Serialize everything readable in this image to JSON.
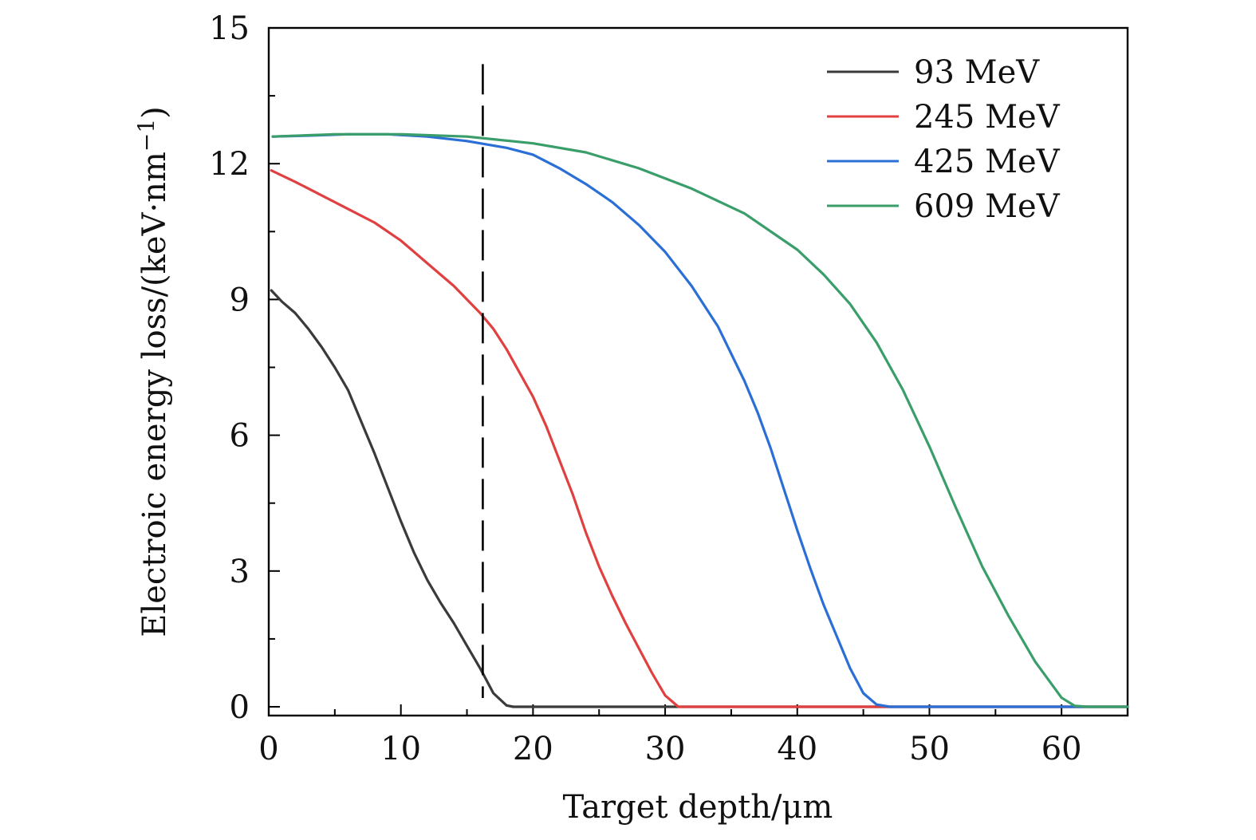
{
  "chart_data": {
    "type": "line",
    "title": "",
    "xlabel": "Target depth/μm",
    "ylabel_main": "Electroic energy loss/(keV·nm",
    "ylabel_exp": "−1",
    "ylabel_close": ")",
    "xlim": [
      0,
      65
    ],
    "ylim": [
      0,
      15
    ],
    "xticks": [
      0,
      10,
      20,
      30,
      40,
      50,
      60
    ],
    "xtick_labels": [
      "0",
      "10",
      "20",
      "30",
      "40",
      "50",
      "60"
    ],
    "yticks": [
      0,
      3,
      6,
      9,
      12,
      15
    ],
    "ytick_labels": [
      "0",
      "3",
      "6",
      "9",
      "12",
      "15"
    ],
    "grid": false,
    "legend_position": "top-right",
    "reference_line": {
      "x": 16.2,
      "y_range": [
        0,
        14.2
      ],
      "style": "dashed",
      "color": "#000000"
    },
    "series": [
      {
        "name": "93 MeV",
        "color": "#3a3a3a",
        "x": [
          0.2,
          1,
          2,
          3,
          4,
          5,
          6,
          7,
          8,
          9,
          10,
          11,
          12,
          13,
          14,
          15,
          16,
          17,
          18,
          18.5,
          20,
          30,
          40,
          50,
          60,
          65
        ],
        "y": [
          9.2,
          8.95,
          8.7,
          8.35,
          7.95,
          7.5,
          7.0,
          6.3,
          5.6,
          4.85,
          4.1,
          3.4,
          2.8,
          2.3,
          1.85,
          1.35,
          0.85,
          0.3,
          0.03,
          0.0,
          0.0,
          0.0,
          0.0,
          0.0,
          0.0,
          0.0
        ]
      },
      {
        "name": "245 MeV",
        "color": "#e04040",
        "x": [
          0.2,
          2,
          4,
          6,
          8,
          10,
          12,
          14,
          16,
          17,
          18,
          20,
          21,
          22,
          23,
          24,
          25,
          26,
          27,
          28,
          29,
          30,
          31,
          32,
          32.5,
          33,
          40,
          50,
          60,
          65
        ],
        "y": [
          11.85,
          11.6,
          11.3,
          11.0,
          10.7,
          10.3,
          9.8,
          9.3,
          8.7,
          8.35,
          7.9,
          6.85,
          6.2,
          5.45,
          4.7,
          3.85,
          3.1,
          2.45,
          1.85,
          1.3,
          0.75,
          0.25,
          0.0,
          0.0,
          0.0,
          0.0,
          0.0,
          0.0,
          0.0,
          0.0
        ]
      },
      {
        "name": "425 MeV",
        "color": "#2b6fd6",
        "x": [
          0.3,
          3,
          6,
          9,
          12,
          15,
          18,
          20,
          22,
          24,
          26,
          28,
          30,
          32,
          34,
          36,
          37,
          38,
          39,
          40,
          41,
          42,
          43,
          44,
          45,
          46,
          47,
          47.5,
          50,
          60,
          65
        ],
        "y": [
          12.6,
          12.62,
          12.65,
          12.65,
          12.6,
          12.5,
          12.35,
          12.2,
          11.9,
          11.55,
          11.15,
          10.65,
          10.05,
          9.3,
          8.4,
          7.2,
          6.5,
          5.7,
          4.8,
          3.9,
          3.05,
          2.25,
          1.55,
          0.85,
          0.3,
          0.05,
          0.0,
          0.0,
          0.0,
          0.0,
          0.0
        ]
      },
      {
        "name": "609 MeV",
        "color": "#3a9e6a",
        "x": [
          0.3,
          5,
          10,
          15,
          20,
          24,
          28,
          32,
          36,
          40,
          42,
          44,
          46,
          48,
          50,
          52,
          54,
          56,
          58,
          60,
          61,
          62,
          63,
          65
        ],
        "y": [
          12.6,
          12.65,
          12.65,
          12.6,
          12.45,
          12.25,
          11.9,
          11.45,
          10.9,
          10.1,
          9.55,
          8.9,
          8.05,
          7.0,
          5.75,
          4.4,
          3.1,
          2.0,
          1.0,
          0.2,
          0.02,
          0.0,
          0.0,
          0.0
        ]
      }
    ]
  }
}
